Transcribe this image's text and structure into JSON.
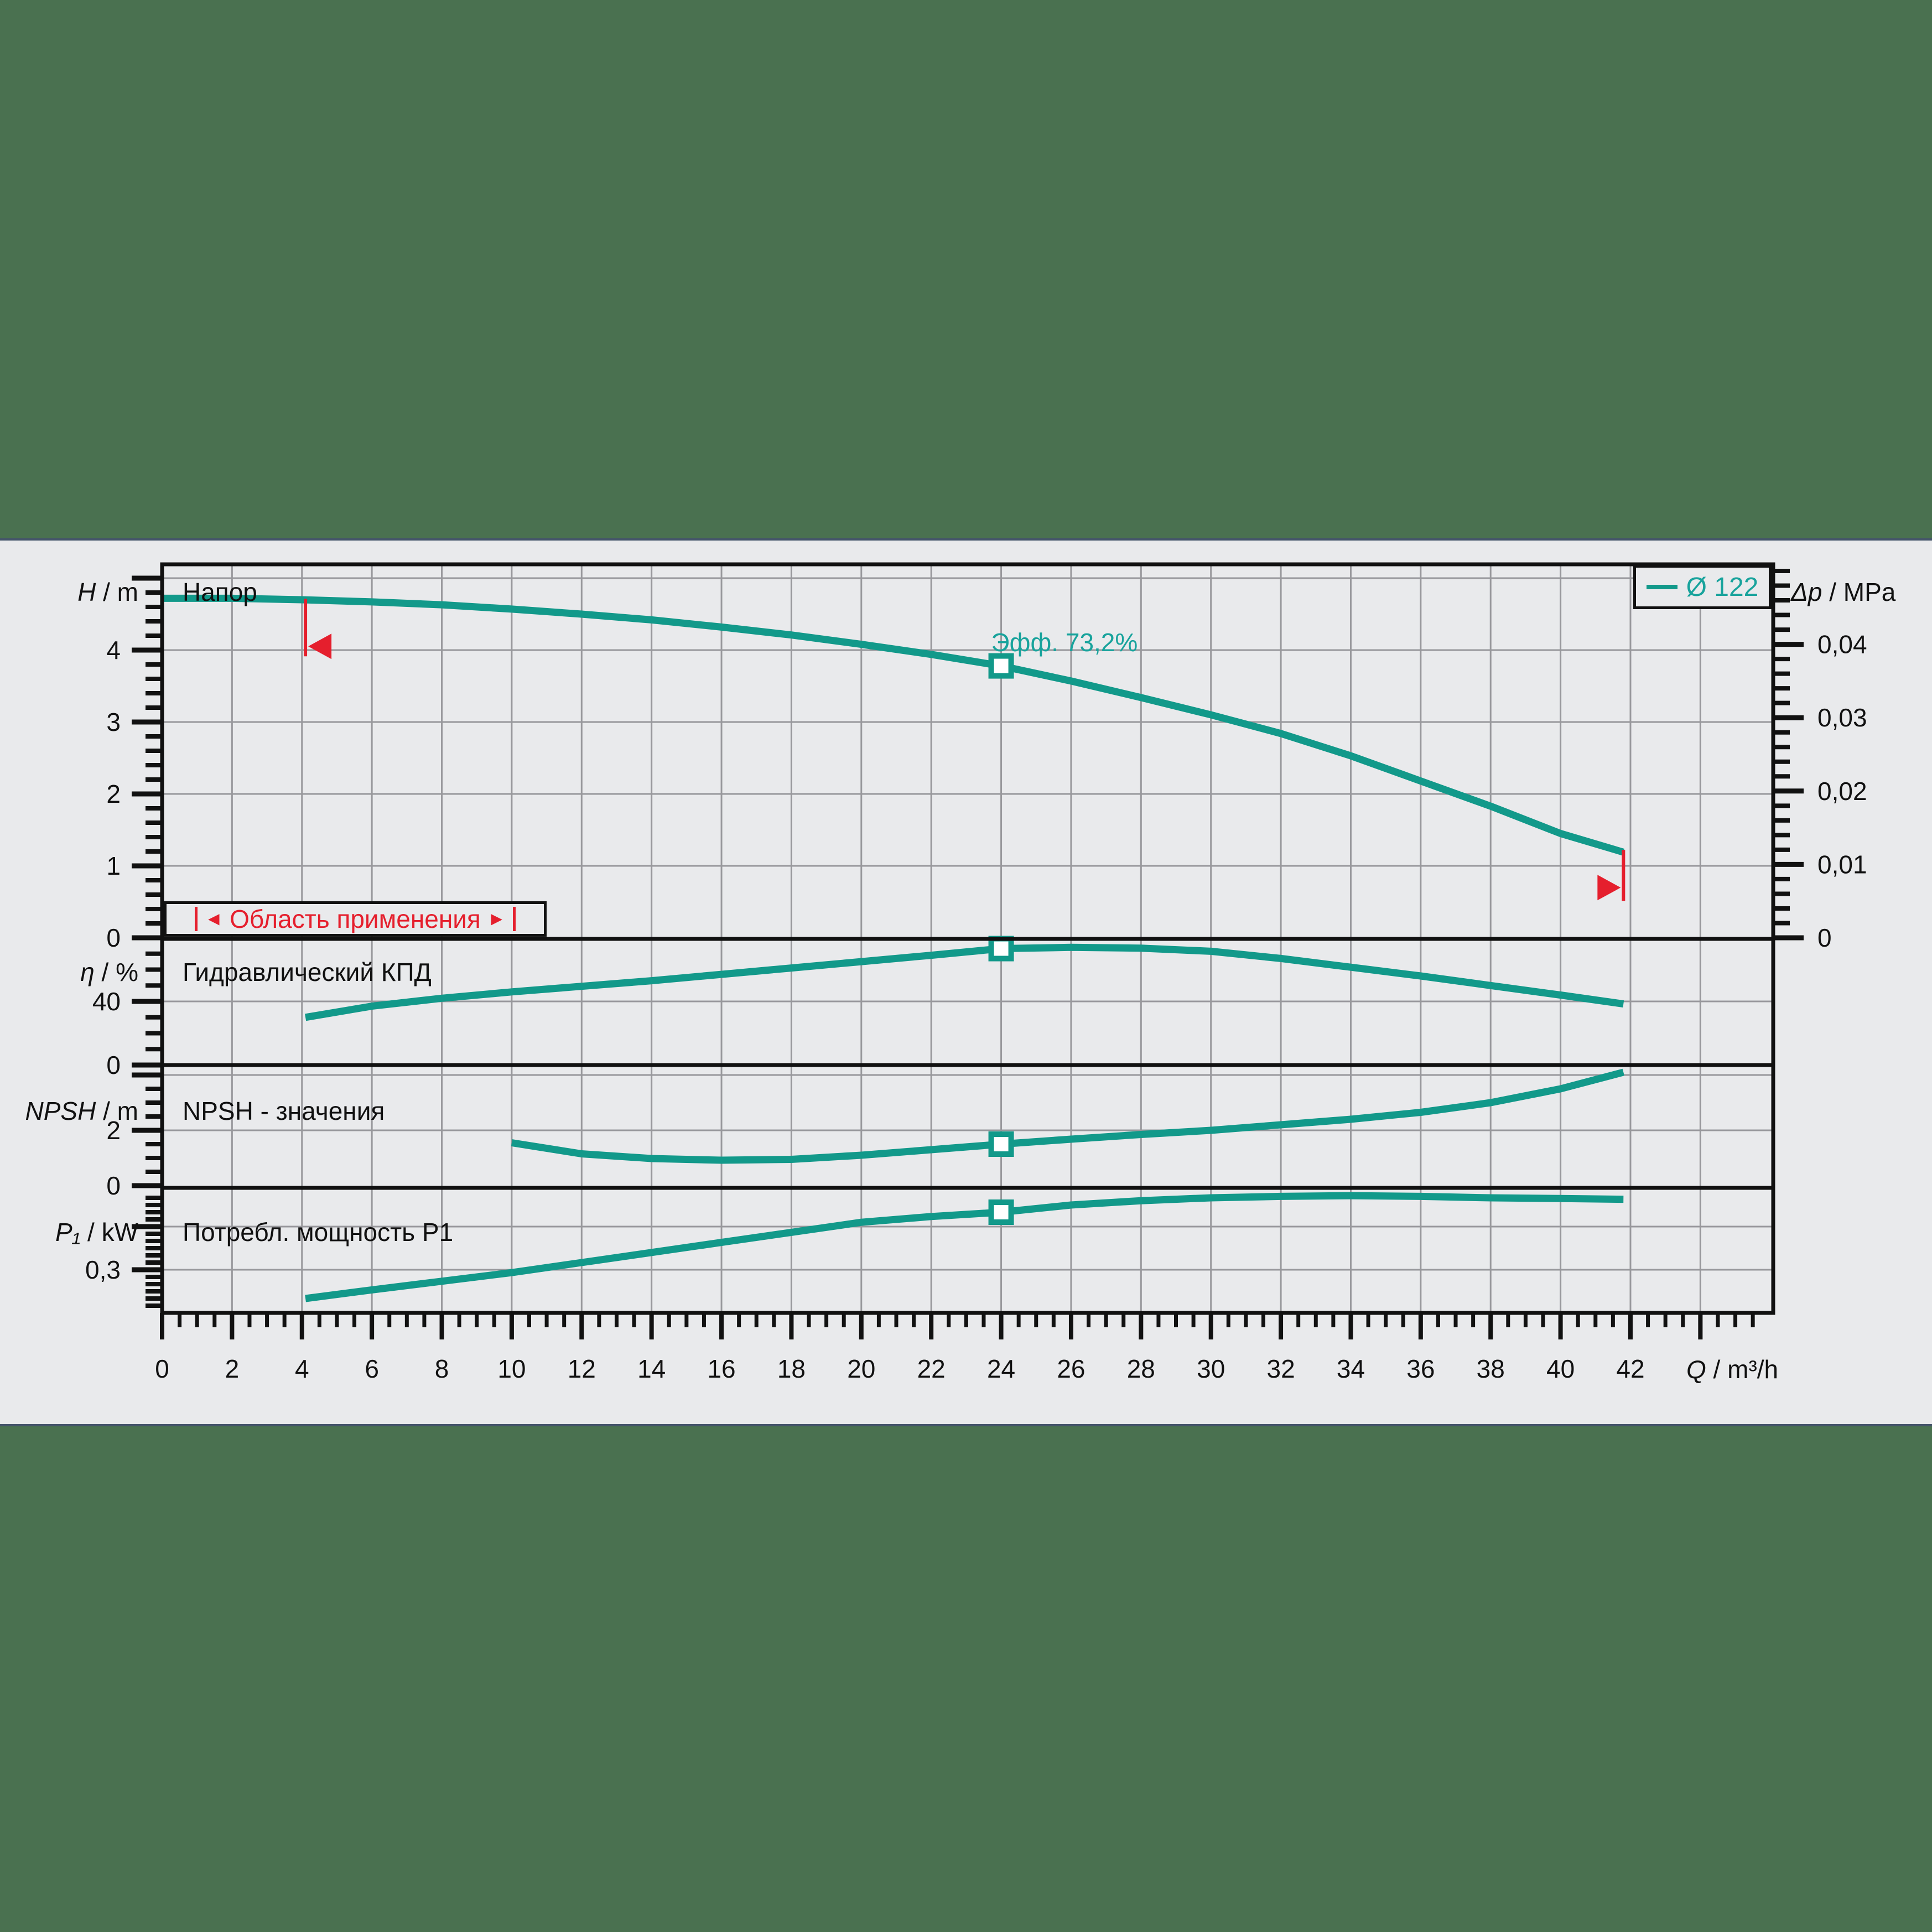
{
  "colors": {
    "background": "#4a7150",
    "panel": "#e9eaec",
    "band_edge": "#44546a",
    "grid": "#98989c",
    "axis": "#111111",
    "curve": "#12998a",
    "accent_teal": "#18a39c",
    "red": "#e51f2d"
  },
  "header": {
    "h_axis": {
      "sym": "H",
      "sep": " / ",
      "unit": "m"
    },
    "h_panel_title": "Напор",
    "dp_axis": {
      "sym": "Δp",
      "sep": " / ",
      "unit": "MPa"
    },
    "legend": {
      "series": "Ø 122"
    }
  },
  "eta_panel": {
    "axis": {
      "sym": "η",
      "sep": " / ",
      "unit": "%"
    },
    "title": "Гидравлический КПД"
  },
  "npsh_panel": {
    "axis": {
      "sym": "NPSH",
      "sep": " / ",
      "unit": "m"
    },
    "title": "NPSH - значения"
  },
  "p1_panel": {
    "axis": {
      "sym": "P₁",
      "sep": " / ",
      "unit": "kW"
    },
    "title": "Потребл. мощность P1"
  },
  "x_axis": {
    "sym": "Q",
    "sep": " / ",
    "unit": "m³/h"
  },
  "duty_point": {
    "q": 24,
    "efficiency_label": "Эфф.  73,2%",
    "h": 3.78,
    "eta": 73.2,
    "npsh": 1.5,
    "p1": 0.7
  },
  "application_range": {
    "label": "Область применения",
    "left_arrow": "◄",
    "right_arrow": "►",
    "q_min": 4.1,
    "q_max": 41.8
  },
  "chart_data": {
    "type": "line",
    "x_label": "Q / m³/h",
    "x_ticks": [
      0,
      2,
      4,
      6,
      8,
      10,
      12,
      14,
      16,
      18,
      20,
      22,
      24,
      26,
      28,
      30,
      32,
      34,
      36,
      38,
      40,
      42
    ],
    "x_minor_step": 0.5,
    "x_unlabeled_majors": [
      44
    ],
    "grid": true,
    "legend_position": "top-right",
    "subplots": [
      {
        "id": "H",
        "title": "Напор",
        "ylabel": "H / m",
        "ylim": [
          0,
          5.2
        ],
        "gridlines": [
          1,
          2,
          3,
          4,
          5
        ],
        "y_ticks": [
          {
            "v": 0,
            "label": "0"
          },
          {
            "v": 1,
            "label": "1"
          },
          {
            "v": 2,
            "label": "2"
          },
          {
            "v": 3,
            "label": "3"
          },
          {
            "v": 4,
            "label": "4"
          }
        ],
        "y_unlabeled_majors": [
          5
        ],
        "y_minor_step": 0.2,
        "right_axis": {
          "label": "Δp / MPa",
          "minor_step": 0.002,
          "max": 0.05,
          "ticks": [
            {
              "v": 0,
              "label": "0"
            },
            {
              "v": 0.01,
              "label": "0,01"
            },
            {
              "v": 0.02,
              "label": "0,02"
            },
            {
              "v": 0.03,
              "label": "0,03"
            },
            {
              "v": 0.04,
              "label": "0,04"
            }
          ]
        },
        "series": [
          {
            "name": "Ø 122",
            "points": [
              [
                0,
                4.72
              ],
              [
                2,
                4.72
              ],
              [
                4,
                4.7
              ],
              [
                6,
                4.67
              ],
              [
                8,
                4.63
              ],
              [
                10,
                4.57
              ],
              [
                12,
                4.5
              ],
              [
                14,
                4.42
              ],
              [
                16,
                4.32
              ],
              [
                18,
                4.21
              ],
              [
                20,
                4.08
              ],
              [
                22,
                3.94
              ],
              [
                24,
                3.78
              ],
              [
                26,
                3.57
              ],
              [
                28,
                3.34
              ],
              [
                30,
                3.1
              ],
              [
                32,
                2.84
              ],
              [
                34,
                2.53
              ],
              [
                36,
                2.18
              ],
              [
                38,
                1.83
              ],
              [
                40,
                1.45
              ],
              [
                41.8,
                1.19
              ]
            ]
          }
        ],
        "marker": {
          "q": 24,
          "v": 3.78
        }
      },
      {
        "id": "eta",
        "title": "Гидравлический КПД",
        "ylabel": "η / %",
        "ylim": [
          0,
          80
        ],
        "gridlines": [
          40
        ],
        "y_ticks": [
          {
            "v": 0,
            "label": "0"
          },
          {
            "v": 40,
            "label": "40"
          }
        ],
        "y_unlabeled_majors": [],
        "y_minor_step": 10,
        "series": [
          {
            "name": "Ø 122",
            "points": [
              [
                4.1,
                30
              ],
              [
                6,
                37
              ],
              [
                8,
                42
              ],
              [
                10,
                46
              ],
              [
                12,
                49.5
              ],
              [
                14,
                53
              ],
              [
                16,
                57
              ],
              [
                18,
                61
              ],
              [
                20,
                65
              ],
              [
                22,
                69
              ],
              [
                24,
                73.2
              ],
              [
                26,
                74
              ],
              [
                28,
                73.5
              ],
              [
                30,
                71.5
              ],
              [
                32,
                67
              ],
              [
                34,
                61.5
              ],
              [
                36,
                56
              ],
              [
                38,
                50
              ],
              [
                40,
                44
              ],
              [
                41.8,
                38.4
              ]
            ]
          }
        ],
        "marker": {
          "q": 24,
          "v": 73.2
        }
      },
      {
        "id": "npsh",
        "title": "NPSH - значения",
        "ylabel": "NPSH / m",
        "ylim": [
          0,
          4.4
        ],
        "gridlines": [
          2,
          4
        ],
        "y_ticks": [
          {
            "v": 0,
            "label": "0"
          },
          {
            "v": 2,
            "label": "2"
          }
        ],
        "y_unlabeled_majors": [
          4
        ],
        "y_minor_step": 0.5,
        "series": [
          {
            "name": "Ø 122",
            "points": [
              [
                10,
                1.55
              ],
              [
                12,
                1.15
              ],
              [
                14,
                0.98
              ],
              [
                16,
                0.92
              ],
              [
                18,
                0.95
              ],
              [
                20,
                1.1
              ],
              [
                22,
                1.3
              ],
              [
                24,
                1.5
              ],
              [
                26,
                1.68
              ],
              [
                28,
                1.85
              ],
              [
                30,
                2
              ],
              [
                32,
                2.2
              ],
              [
                34,
                2.4
              ],
              [
                36,
                2.65
              ],
              [
                38,
                3
              ],
              [
                40,
                3.5
              ],
              [
                41.8,
                4.1
              ]
            ]
          }
        ],
        "marker": {
          "q": 24,
          "v": 1.5
        }
      },
      {
        "id": "p1",
        "title": "Потребл. мощность P1",
        "ylabel": "P1 / kW",
        "ylim": [
          0,
          0.87
        ],
        "gridlines": [
          0.3,
          0.6
        ],
        "y_ticks": [
          {
            "v": 0.3,
            "label": "0,3"
          }
        ],
        "y_unlabeled_majors": [
          0.6
        ],
        "y_minor_step": 0.05,
        "series": [
          {
            "name": "Ø 122",
            "points": [
              [
                4.1,
                0.1
              ],
              [
                6,
                0.16
              ],
              [
                8,
                0.22
              ],
              [
                10,
                0.28
              ],
              [
                12,
                0.35
              ],
              [
                14,
                0.42
              ],
              [
                16,
                0.49
              ],
              [
                18,
                0.56
              ],
              [
                20,
                0.63
              ],
              [
                22,
                0.67
              ],
              [
                24,
                0.7
              ],
              [
                26,
                0.75
              ],
              [
                28,
                0.78
              ],
              [
                30,
                0.8
              ],
              [
                32,
                0.81
              ],
              [
                34,
                0.815
              ],
              [
                36,
                0.81
              ],
              [
                38,
                0.8
              ],
              [
                40,
                0.795
              ],
              [
                41.8,
                0.79
              ]
            ]
          }
        ],
        "marker": {
          "q": 24,
          "v": 0.7
        }
      }
    ]
  }
}
